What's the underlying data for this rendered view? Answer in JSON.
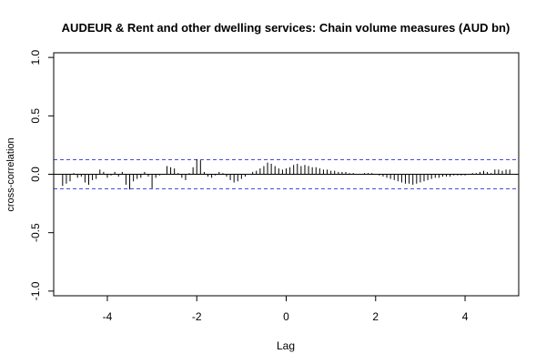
{
  "chart_data": {
    "type": "bar",
    "title": "AUDEUR & Rent and other dwelling services: Chain volume measures (AUD bn)",
    "xlabel": "Lag",
    "ylabel": "cross-correlation",
    "xlim": [
      -5.2,
      5.2
    ],
    "ylim": [
      -1.0,
      1.0
    ],
    "xticks": [
      "-4",
      "-2",
      "0",
      "2",
      "4"
    ],
    "xtick_values": [
      -4,
      -2,
      0,
      2,
      4
    ],
    "yticks": [
      "-1.0",
      "-0.5",
      "0.0",
      "0.5",
      "1.0"
    ],
    "ytick_values": [
      -1.0,
      -0.5,
      0.0,
      0.5,
      1.0
    ],
    "confidence_bound": 0.125,
    "bar_color": "#000000",
    "bound_color": "#4a4ae0",
    "lag_step": 0.0833,
    "x_start": -5.0,
    "x_end": 5.0,
    "values": [
      -0.1,
      -0.08,
      -0.06,
      0.01,
      -0.03,
      -0.02,
      -0.07,
      -0.09,
      -0.05,
      -0.04,
      0.04,
      0.02,
      -0.03,
      -0.01,
      0.02,
      -0.02,
      0.02,
      -0.09,
      -0.13,
      -0.06,
      -0.04,
      -0.03,
      0.02,
      -0.02,
      -0.12,
      -0.03,
      -0.01,
      0.0,
      0.07,
      0.06,
      0.05,
      0.01,
      -0.03,
      -0.05,
      0.01,
      0.06,
      0.13,
      0.12,
      0.02,
      -0.02,
      -0.03,
      -0.01,
      0.02,
      0.01,
      -0.02,
      -0.05,
      -0.07,
      -0.06,
      -0.04,
      -0.02,
      0.0,
      0.02,
      0.03,
      0.05,
      0.07,
      0.1,
      0.09,
      0.07,
      0.05,
      0.04,
      0.05,
      0.06,
      0.08,
      0.09,
      0.07,
      0.08,
      0.07,
      0.06,
      0.06,
      0.05,
      0.04,
      0.04,
      0.03,
      0.03,
      0.02,
      0.02,
      0.02,
      0.01,
      0.01,
      0.0,
      0.0,
      0.01,
      0.01,
      0.01,
      0.0,
      -0.01,
      -0.02,
      -0.03,
      -0.04,
      -0.05,
      -0.06,
      -0.07,
      -0.08,
      -0.08,
      -0.09,
      -0.08,
      -0.07,
      -0.06,
      -0.05,
      -0.04,
      -0.03,
      -0.03,
      -0.02,
      -0.02,
      -0.02,
      -0.01,
      -0.01,
      -0.01,
      -0.01,
      0.0,
      0.01,
      0.01,
      0.02,
      0.03,
      0.02,
      0.01,
      0.04,
      0.04,
      0.03,
      0.04,
      0.04
    ],
    "grid": false,
    "legend": "none"
  }
}
